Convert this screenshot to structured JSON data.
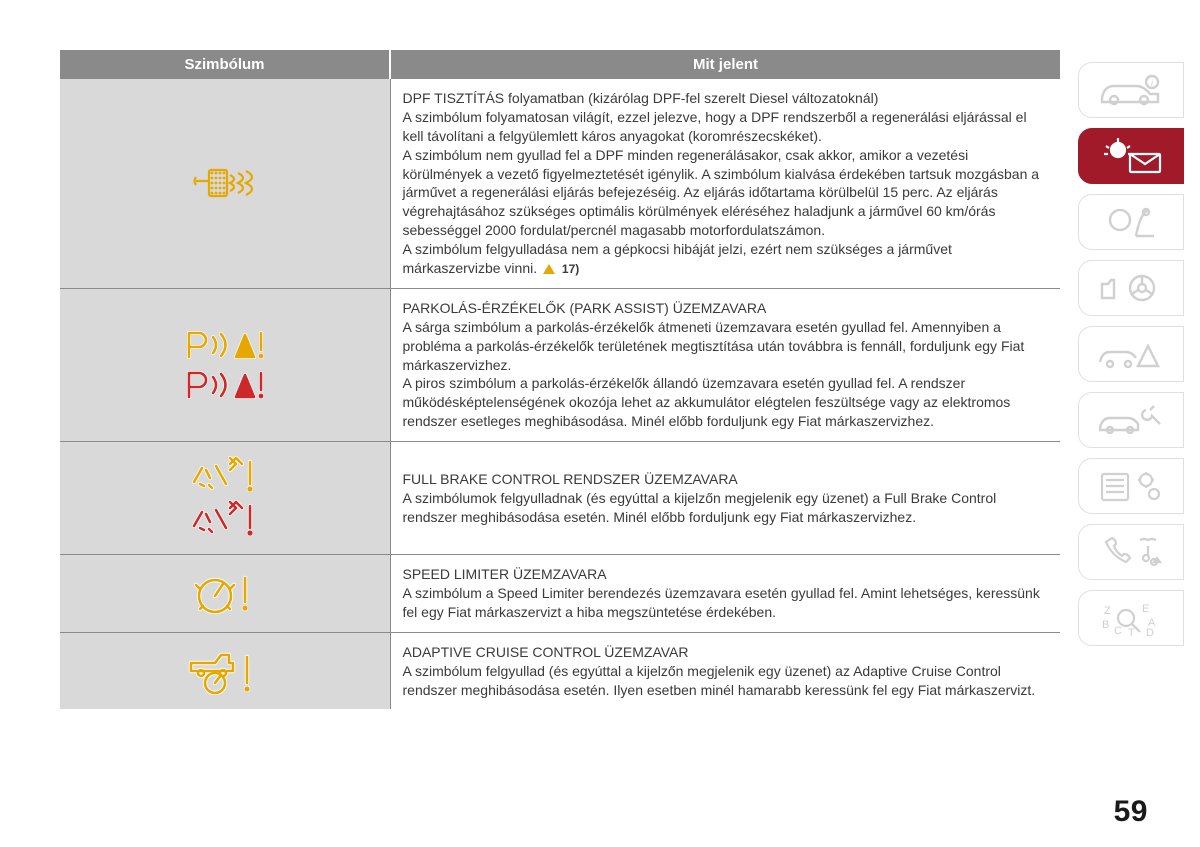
{
  "page_number": "59",
  "colors": {
    "header_bg": "#8a8a8a",
    "header_fg": "#ffffff",
    "row_sym_bg": "#d9d9d9",
    "border": "#8a8a8a",
    "text": "#3a3a3a",
    "amber": "#e6a800",
    "red": "#cc2a2a",
    "tab_active_bg": "#a01a2a",
    "tab_inactive_stroke": "#d0d0d0"
  },
  "table": {
    "headers": {
      "col1": "Szimbólum",
      "col2": "Mit jelent"
    },
    "rows": [
      {
        "icon": "dpf",
        "title": "DPF TISZTÍTÁS folyamatban (kizárólag DPF-fel szerelt Diesel változatoknál)",
        "body": "A szimbólum folyamatosan világít, ezzel jelezve, hogy a DPF rendszerből a regenerálási eljárással el kell távolítani a felgyülemlett káros anyagokat (koromrészecskéket).\nA szimbólum nem gyullad fel a DPF minden regenerálásakor, csak akkor, amikor a vezetési körülmények a vezető figyelmeztetését igénylik. A szimbólum kialvása érdekében tartsuk mozgásban a járművet a regenerálási eljárás befejezéséig. Az eljárás időtartama körülbelül 15 perc. Az eljárás végrehajtásához szükséges optimális körülmények eléréséhez haladjunk a járművel 60 km/órás sebességgel 2000 fordulat/percnél magasabb motorfordulatszámon.\nA szimbólum felgyulladása nem a gépkocsi hibáját jelzi, ezért nem szükséges a járművet márkaszervizbe vinni.",
        "ref": "17)"
      },
      {
        "icon": "park",
        "title": "PARKOLÁS-ÉRZÉKELŐK (PARK ASSIST) ÜZEMZAVARA",
        "body": "A sárga szimbólum a parkolás-érzékelők átmeneti üzemzavara esetén gyullad fel. Amennyiben a probléma a parkolás-érzékelők területének megtisztítása után továbbra is fennáll, forduljunk egy Fiat márkaszervizhez.\nA piros szimbólum a parkolás-érzékelők állandó üzemzavara esetén gyullad fel. A rendszer működésképtelenségének okozója lehet az akkumulátor elégtelen feszültsége vagy az elektromos rendszer esetleges meghibásodása. Minél előbb forduljunk egy Fiat márkaszervizhez."
      },
      {
        "icon": "fbc",
        "title": "FULL BRAKE CONTROL RENDSZER ÜZEMZAVARA",
        "body": "A szimbólumok felgyulladnak (és egyúttal a kijelzőn megjelenik egy üzenet) a Full Brake Control rendszer meghibásodása esetén. Minél előbb forduljunk egy Fiat márkaszervizhez."
      },
      {
        "icon": "speed",
        "title": "SPEED LIMITER ÜZEMZAVARA",
        "body": "A szimbólum a Speed Limiter berendezés üzemzavara esetén gyullad fel. Amint lehetséges, keressünk fel egy Fiat márkaszervizt a hiba megszüntetése érdekében."
      },
      {
        "icon": "acc",
        "title": "ADAPTIVE CRUISE CONTROL ÜZEMZAVAR",
        "body": "A szimbólum felgyullad (és egyúttal a kijelzőn megjelenik egy üzenet) az Adaptive Cruise Control rendszer meghibásodása esetén. Ilyen esetben minél hamarabb keressünk fel egy Fiat márkaszervizt."
      }
    ]
  },
  "tabs": [
    {
      "name": "vehicle-info",
      "active": false
    },
    {
      "name": "warning-lights",
      "active": true
    },
    {
      "name": "safety",
      "active": false
    },
    {
      "name": "starting-driving",
      "active": false
    },
    {
      "name": "emergency",
      "active": false
    },
    {
      "name": "maintenance",
      "active": false
    },
    {
      "name": "technical-data",
      "active": false
    },
    {
      "name": "multimedia",
      "active": false
    },
    {
      "name": "index",
      "active": false
    }
  ]
}
